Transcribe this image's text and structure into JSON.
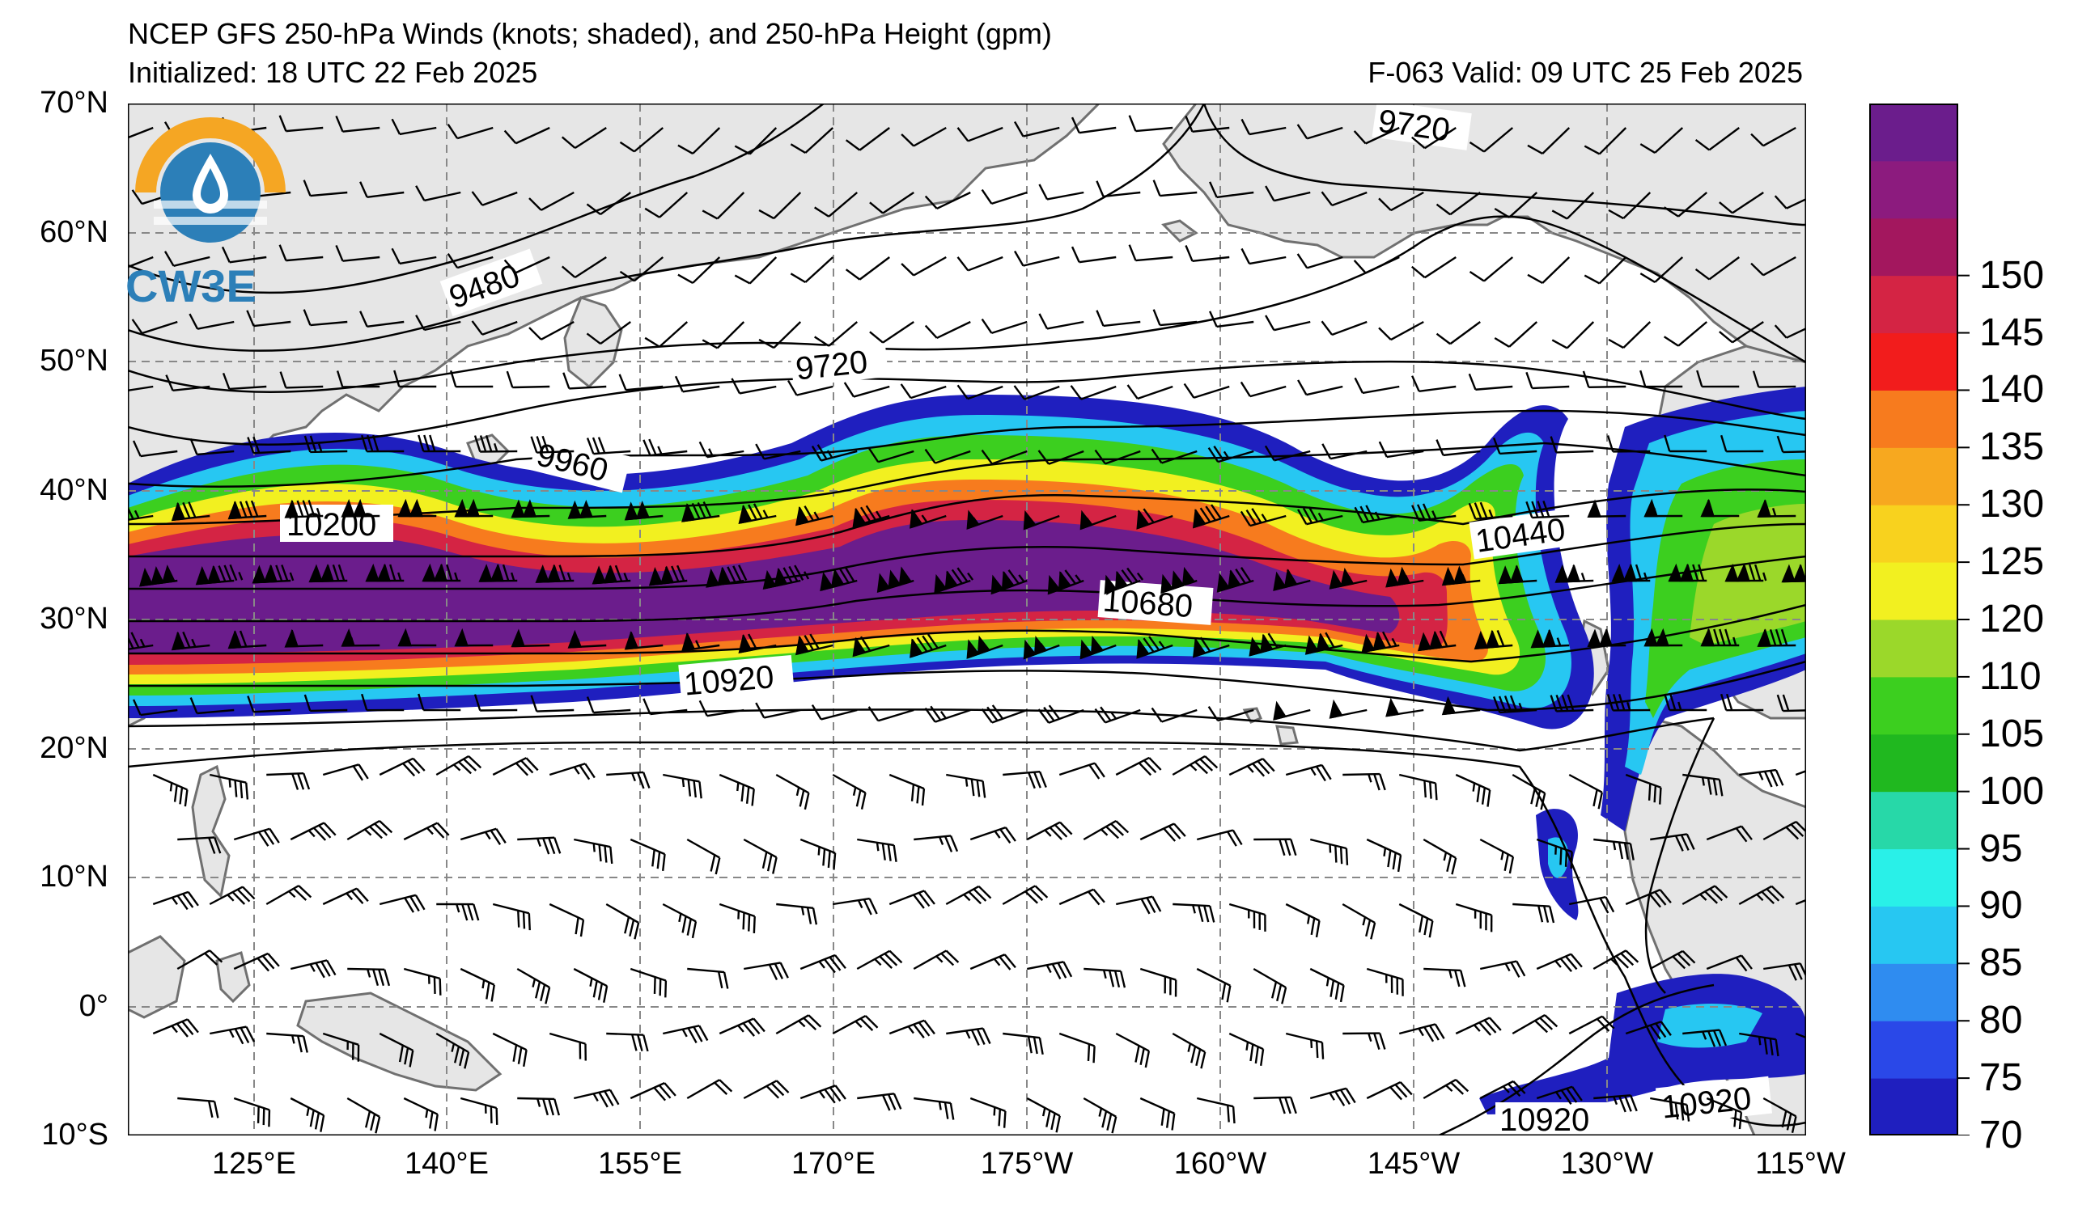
{
  "header": {
    "title": "NCEP GFS 250-hPa Winds (knots; shaded), and 250-hPa Height (gpm)",
    "initialized": "Initialized: 18 UTC 22 Feb 2025",
    "valid": "F-063  Valid: 09 UTC 25 Feb 2025"
  },
  "logo": {
    "text": "CW3E",
    "ring_color": "#f5a623",
    "water_color": "#2c7fb8",
    "icon": "water-drop-icon"
  },
  "map": {
    "extent_lon_east": [
      112,
      245
    ],
    "extent_lat": [
      -10,
      70
    ],
    "lat_ticks": [
      "70°N",
      "60°N",
      "50°N",
      "40°N",
      "30°N",
      "20°N",
      "10°N",
      "0°",
      "10°S"
    ],
    "lon_ticks": [
      "125°E",
      "140°E",
      "155°E",
      "170°E",
      "175°W",
      "160°W",
      "145°W",
      "130°W",
      "115°W"
    ],
    "land_color": "#e6e6e6",
    "coast_color": "#707070",
    "grid_style": "dashed gray"
  },
  "contours": {
    "labels": [
      "9720",
      "9480",
      "9720",
      "9960",
      "10200",
      "10440",
      "10680",
      "10920",
      "10920",
      "10920"
    ]
  },
  "colorbar": {
    "ticks": [
      "70",
      "75",
      "80",
      "85",
      "90",
      "95",
      "100",
      "105",
      "110",
      "120",
      "125",
      "130",
      "135",
      "140",
      "145",
      "150"
    ],
    "colors": [
      "#1f1fbf",
      "#2a48e8",
      "#2f8cf0",
      "#27c7f2",
      "#29f0e8",
      "#27d8a8",
      "#20b81f",
      "#3ccf1f",
      "#9bd82a",
      "#f2f020",
      "#f8d21e",
      "#f7a81f",
      "#f77b1e",
      "#f21c1c",
      "#d42444",
      "#a3175e",
      "#8c1b7e",
      "#6b1d8c"
    ]
  }
}
